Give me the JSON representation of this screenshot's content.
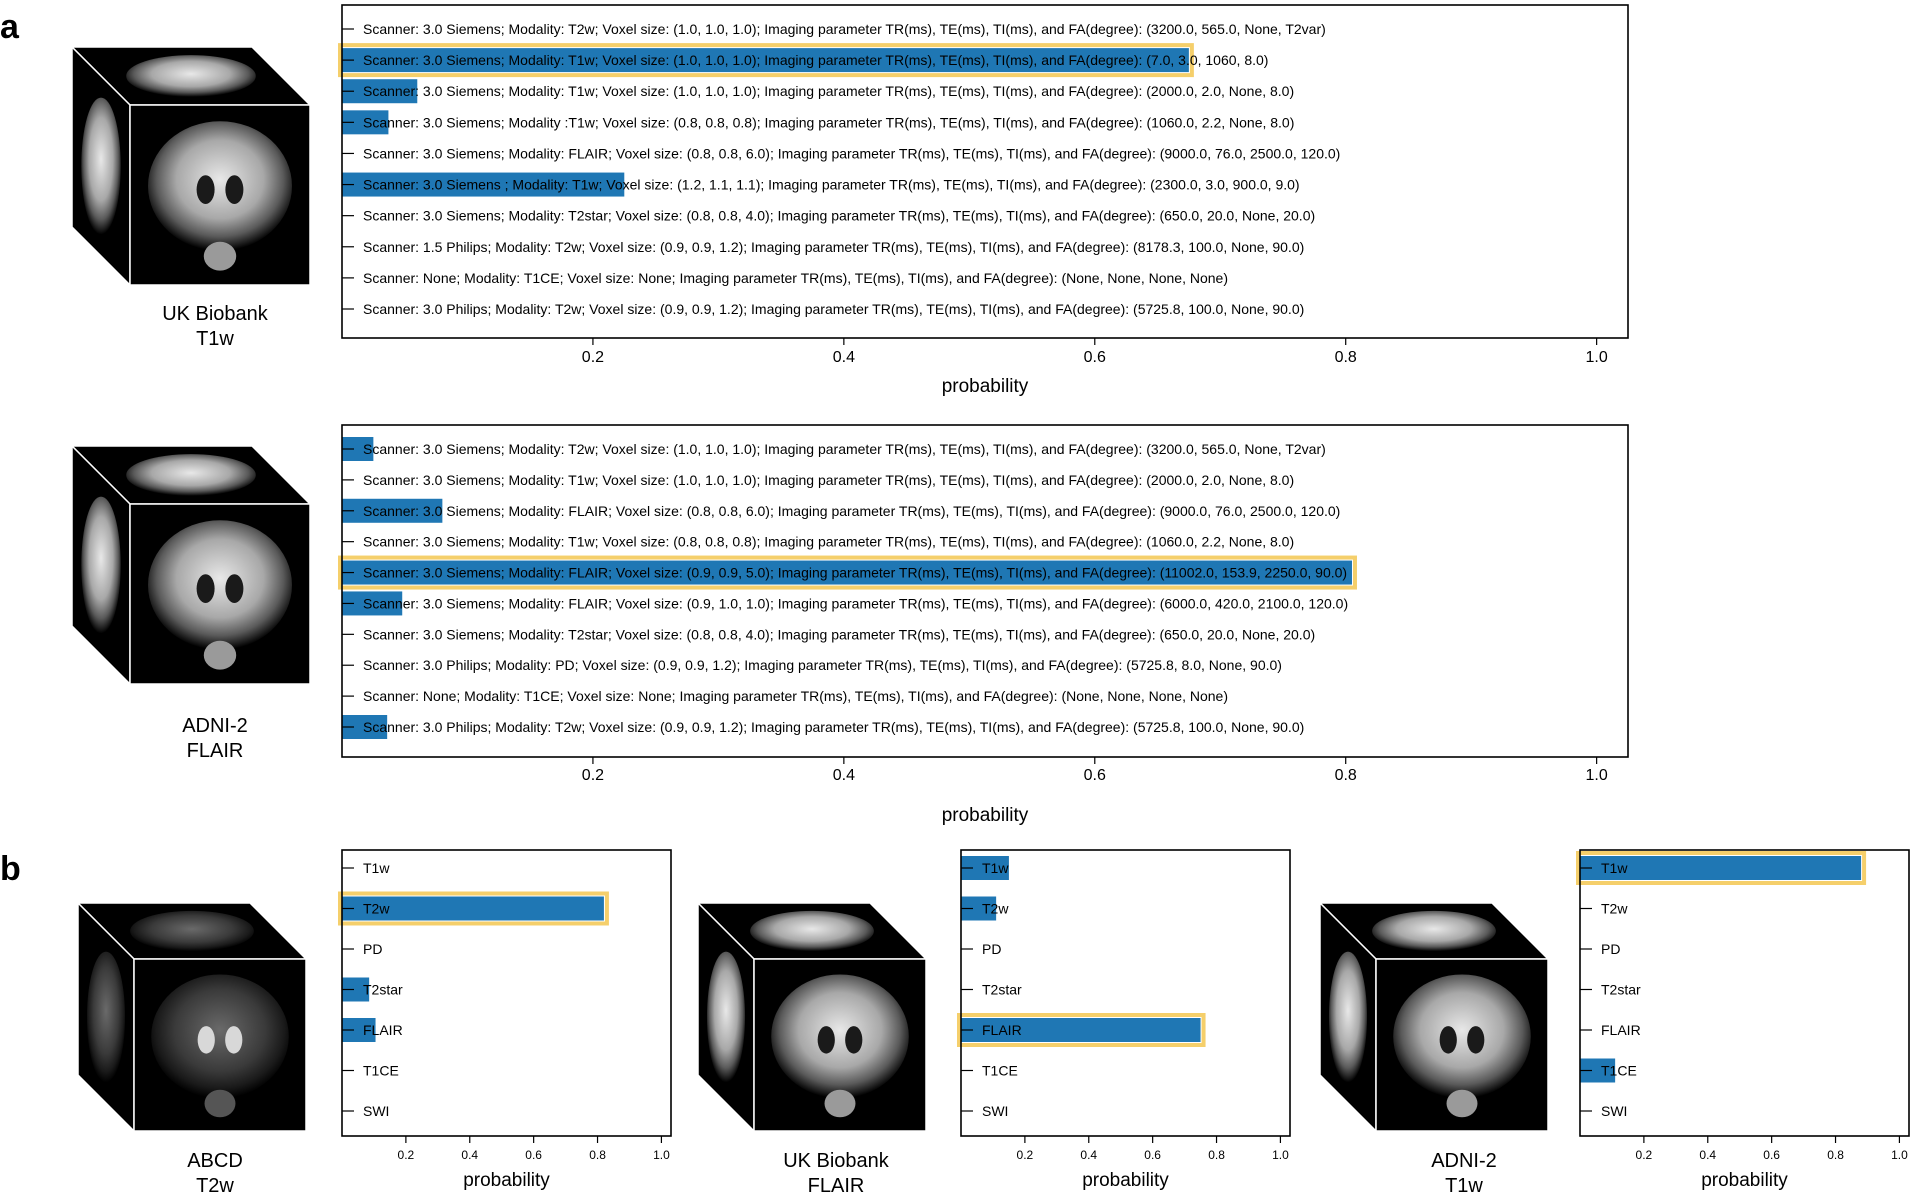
{
  "panel_labels": {
    "a": "a",
    "b": "b"
  },
  "colors": {
    "bar": "#1f77b4",
    "highlight": "#f5cf6b",
    "frame": "#000000"
  },
  "icons": [
    "brain-mri-cube-icon"
  ],
  "chart_data": [
    {
      "type": "bar",
      "panel": "a",
      "orientation": "horizontal",
      "image_caption": [
        "UK Biobank",
        "T1w"
      ],
      "categories": [
        "Scanner: 3.0 Siemens; Modality: T2w; Voxel size: (1.0, 1.0, 1.0); Imaging parameter TR(ms), TE(ms), TI(ms), and FA(degree): (3200.0, 565.0, None, T2var)",
        "Scanner: 3.0 Siemens; Modality: T1w; Voxel size: (1.0, 1.0, 1.0); Imaging parameter TR(ms), TE(ms), TI(ms), and FA(degree): (7.0, 3.0, 1060, 8.0)",
        "Scanner: 3.0 Siemens; Modality: T1w; Voxel size: (1.0, 1.0, 1.0); Imaging parameter TR(ms), TE(ms), TI(ms), and FA(degree): (2000.0, 2.0, None, 8.0)",
        "Scanner: 3.0 Siemens; Modality :T1w; Voxel size: (0.8, 0.8, 0.8); Imaging parameter TR(ms), TE(ms), TI(ms), and FA(degree): (1060.0, 2.2, None, 8.0)",
        "Scanner: 3.0 Siemens; Modality: FLAIR; Voxel size: (0.8, 0.8, 6.0); Imaging parameter TR(ms), TE(ms), TI(ms), and FA(degree): (9000.0, 76.0, 2500.0, 120.0)",
        "Scanner: 3.0 Siemens ; Modality: T1w; Voxel size: (1.2, 1.1, 1.1); Imaging parameter TR(ms), TE(ms), TI(ms), and FA(degree): (2300.0, 3.0, 900.0, 9.0)",
        "Scanner: 3.0 Siemens; Modality: T2star; Voxel size: (0.8, 0.8, 4.0); Imaging parameter TR(ms), TE(ms), TI(ms), and FA(degree): (650.0, 20.0, None, 20.0)",
        "Scanner: 1.5 Philips; Modality: T2w; Voxel size: (0.9, 0.9, 1.2); Imaging parameter TR(ms), TE(ms), TI(ms), and FA(degree): (8178.3, 100.0, None, 90.0)",
        "Scanner: None; Modality: T1CE; Voxel size: None; Imaging parameter TR(ms), TE(ms), TI(ms), and FA(degree): (None, None, None, None)",
        "Scanner: 3.0 Philips; Modality: T2w; Voxel size: (0.9, 0.9, 1.2); Imaging parameter TR(ms), TE(ms), TI(ms), and FA(degree): (5725.8, 100.0, None, 90.0)"
      ],
      "values": [
        0.0,
        0.675,
        0.06,
        0.037,
        0.0,
        0.225,
        0.0,
        0.0,
        0.0,
        0.0
      ],
      "highlight_index": 1,
      "xlabel": "probability",
      "xticks": [
        "0.2",
        "0.4",
        "0.6",
        "0.8",
        "1.0"
      ],
      "xlim": [
        0,
        1.025
      ]
    },
    {
      "type": "bar",
      "panel": "a",
      "orientation": "horizontal",
      "image_caption": [
        "ADNI-2",
        "FLAIR"
      ],
      "categories": [
        "Scanner: 3.0 Siemens; Modality: T2w; Voxel size: (1.0, 1.0, 1.0); Imaging parameter TR(ms), TE(ms), TI(ms), and FA(degree): (3200.0, 565.0, None, T2var)",
        "Scanner: 3.0 Siemens; Modality: T1w; Voxel size: (1.0, 1.0, 1.0); Imaging parameter TR(ms), TE(ms), TI(ms), and FA(degree): (2000.0, 2.0, None, 8.0)",
        "Scanner: 3.0 Siemens; Modality: FLAIR; Voxel size: (0.8, 0.8, 6.0); Imaging parameter TR(ms), TE(ms), TI(ms), and FA(degree): (9000.0, 76.0, 2500.0, 120.0)",
        "Scanner: 3.0 Siemens; Modality: T1w; Voxel size: (0.8, 0.8, 0.8); Imaging parameter TR(ms), TE(ms), TI(ms), and FA(degree): (1060.0, 2.2, None, 8.0)",
        "Scanner: 3.0 Siemens; Modality: FLAIR; Voxel size: (0.9, 0.9, 5.0); Imaging parameter TR(ms), TE(ms), TI(ms), and FA(degree): (11002.0, 153.9, 2250.0, 90.0)",
        "Scanner: 3.0 Siemens; Modality: FLAIR; Voxel size: (0.9, 1.0, 1.0); Imaging parameter TR(ms), TE(ms), TI(ms), and FA(degree): (6000.0, 420.0, 2100.0, 120.0)",
        "Scanner: 3.0 Siemens; Modality: T2star; Voxel size: (0.8, 0.8, 4.0); Imaging parameter TR(ms), TE(ms), TI(ms), and FA(degree): (650.0, 20.0, None, 20.0)",
        "Scanner: 3.0 Philips; Modality: PD; Voxel size: (0.9, 0.9, 1.2); Imaging parameter TR(ms), TE(ms), TI(ms), and FA(degree): (5725.8, 8.0, None, 90.0)",
        "Scanner: None; Modality: T1CE; Voxel size: None; Imaging parameter TR(ms), TE(ms), TI(ms), and FA(degree): (None, None, None, None)",
        "Scanner: 3.0 Philips; Modality: T2w; Voxel size: (0.9, 0.9, 1.2); Imaging parameter TR(ms), TE(ms), TI(ms), and FA(degree): (5725.8, 100.0, None, 90.0)"
      ],
      "values": [
        0.025,
        0.0,
        0.08,
        0.0,
        0.805,
        0.048,
        0.0,
        0.0,
        0.0,
        0.036
      ],
      "highlight_index": 4,
      "xlabel": "probability",
      "xticks": [
        "0.2",
        "0.4",
        "0.6",
        "0.8",
        "1.0"
      ],
      "xlim": [
        0,
        1.025
      ]
    },
    {
      "type": "bar",
      "panel": "b",
      "orientation": "horizontal",
      "image_caption": [
        "ABCD",
        "T2w"
      ],
      "categories": [
        "T1w",
        "T2w",
        "PD",
        "T2star",
        "FLAIR",
        "T1CE",
        "SWI"
      ],
      "values": [
        0.0,
        0.82,
        0.0,
        0.085,
        0.105,
        0.0,
        0.0
      ],
      "highlight_index": 1,
      "xlabel": "probability",
      "xticks": [
        "0.2",
        "0.4",
        "0.6",
        "0.8",
        "1.0"
      ],
      "xlim": [
        0,
        1.03
      ]
    },
    {
      "type": "bar",
      "panel": "b",
      "orientation": "horizontal",
      "image_caption": [
        "UK Biobank",
        "FLAIR"
      ],
      "categories": [
        "T1w",
        "T2w",
        "PD",
        "T2star",
        "FLAIR",
        "T1CE",
        "SWI"
      ],
      "values": [
        0.15,
        0.11,
        0.0,
        0.0,
        0.75,
        0.0,
        0.0
      ],
      "highlight_index": 4,
      "xlabel": "probability",
      "xticks": [
        "0.2",
        "0.4",
        "0.6",
        "0.8",
        "1.0"
      ],
      "xlim": [
        0,
        1.03
      ]
    },
    {
      "type": "bar",
      "panel": "b",
      "orientation": "horizontal",
      "image_caption": [
        "ADNI-2",
        "T1w"
      ],
      "categories": [
        "T1w",
        "T2w",
        "PD",
        "T2star",
        "FLAIR",
        "T1CE",
        "SWI"
      ],
      "values": [
        0.88,
        0.0,
        0.0,
        0.0,
        0.0,
        0.11,
        0.0
      ],
      "highlight_index": 0,
      "xlabel": "probability",
      "xticks": [
        "0.2",
        "0.4",
        "0.6",
        "0.8",
        "1.0"
      ],
      "xlim": [
        0,
        1.03
      ]
    }
  ]
}
